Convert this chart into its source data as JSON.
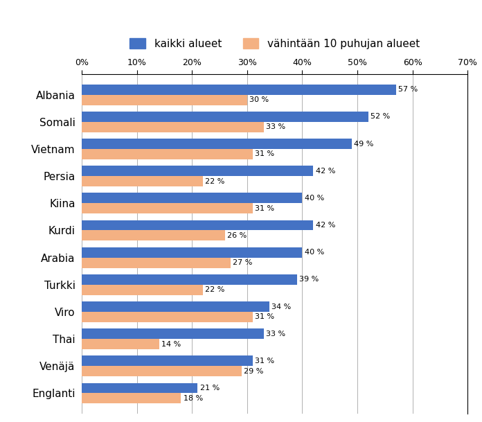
{
  "categories": [
    "Albania",
    "Somali",
    "Vietnam",
    "Persia",
    "Kiina",
    "Kurdi",
    "Arabia",
    "Turkki",
    "Viro",
    "Thai",
    "Venäjä",
    "Englanti"
  ],
  "kaikki_alueet": [
    57,
    52,
    49,
    42,
    40,
    42,
    40,
    39,
    34,
    33,
    31,
    21
  ],
  "vahintaan_10": [
    30,
    33,
    31,
    22,
    31,
    26,
    27,
    22,
    31,
    14,
    29,
    18
  ],
  "bar_color_blue": "#4472c4",
  "bar_color_orange": "#f4b183",
  "legend_labels": [
    "kaikki alueet",
    "vähintään 10 puhujan alueet"
  ],
  "xlim": [
    0,
    70
  ],
  "xtick_values": [
    0,
    10,
    20,
    30,
    40,
    50,
    60,
    70
  ],
  "background_color": "#ffffff",
  "bar_height": 0.38,
  "grid_color": "#b0b0b0"
}
